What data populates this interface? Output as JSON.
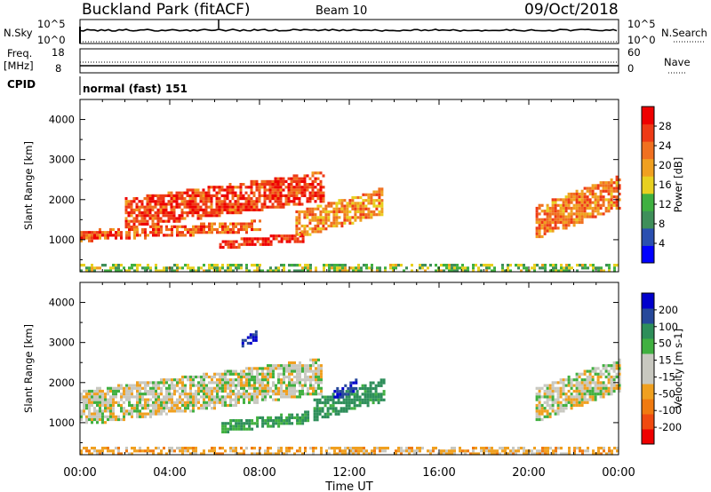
{
  "header": {
    "station": "Buckland Park (fitACF)",
    "beam": "Beam 10",
    "date": "09/Oct/2018"
  },
  "top_panels": {
    "nsky_label": "N.Sky",
    "nsky_tick_high": "10^5",
    "nsky_tick_low": "10^0",
    "nsearch_label": "N.Search",
    "nsearch_tick_high": "10^5",
    "nsearch_tick_low": "10^0",
    "freq_label": "Freq.",
    "freq_unit": "[MHz]",
    "freq_tick_high": "18",
    "freq_tick_low": "8",
    "nave_label": "Nave",
    "nave_tick_high": "60",
    "nave_tick_low": "0",
    "cpid_label": "CPID",
    "cpid_value": "normal (fast) 151"
  },
  "colors": {
    "power_scale": [
      "#0000ff",
      "#2a4fb0",
      "#3f8f5a",
      "#3fb040",
      "#e8d020",
      "#f0a020",
      "#f07020",
      "#ee3a16",
      "#ee0000"
    ],
    "velocity_scale": [
      "#ee0000",
      "#f04a10",
      "#f07a10",
      "#f0a020",
      "#c8c8c0",
      "#c8c8c0",
      "#40b040",
      "#2e8e5a",
      "#26489a",
      "#0000cc"
    ]
  },
  "chart_data": [
    {
      "type": "heatmap",
      "quantity": "Power",
      "x": {
        "label": "Time UT",
        "range": [
          0,
          24
        ],
        "tick_labels": [
          "00:00",
          "04:00",
          "08:00",
          "12:00",
          "16:00",
          "20:00",
          "00:00"
        ]
      },
      "y": {
        "label": "Slant Range [km]",
        "range": [
          200,
          4500
        ],
        "tick_values": [
          1000,
          2000,
          3000,
          4000
        ],
        "tick_labels": [
          "1000",
          "2000",
          "3000",
          "4000"
        ]
      },
      "colorbar": {
        "label": "Power [dB]",
        "tick_labels": [
          "4",
          "8",
          "12",
          "16",
          "20",
          "24",
          "28"
        ],
        "range": [
          0,
          30
        ]
      },
      "echo_regions": [
        {
          "t_start": 0,
          "t_end": 24,
          "range_km": [
            250,
            400
          ],
          "power_db": 12
        },
        {
          "t_start": 0.0,
          "t_end": 8.0,
          "range_km": [
            1000,
            1500
          ],
          "power_db": 24
        },
        {
          "t_start": 2.0,
          "t_end": 10.8,
          "range_km": [
            1350,
            2700
          ],
          "power_db": 26
        },
        {
          "t_start": 6.2,
          "t_end": 9.9,
          "range_km": [
            800,
            1200
          ],
          "power_db": 28
        },
        {
          "t_start": 9.6,
          "t_end": 13.5,
          "range_km": [
            1100,
            2300
          ],
          "power_db": 20
        },
        {
          "t_start": 20.3,
          "t_end": 24,
          "range_km": [
            1100,
            2600
          ],
          "power_db": 22
        }
      ]
    },
    {
      "type": "heatmap",
      "quantity": "Velocity",
      "x": {
        "label": "Time UT",
        "range": [
          0,
          24
        ],
        "tick_labels": [
          "00:00",
          "04:00",
          "08:00",
          "12:00",
          "16:00",
          "20:00",
          "00:00"
        ]
      },
      "y": {
        "label": "Slant Range [km]",
        "range": [
          200,
          4500
        ],
        "tick_values": [
          1000,
          2000,
          3000,
          4000
        ],
        "tick_labels": [
          "1000",
          "2000",
          "3000",
          "4000"
        ]
      },
      "colorbar": {
        "label": "Velocity [m s-1]",
        "tick_labels": [
          "-200",
          "-100",
          "-50",
          "-15",
          "15",
          "50",
          "100",
          "200"
        ]
      },
      "echo_regions": [
        {
          "t_start": 0,
          "t_end": 24,
          "range_km": [
            250,
            400
          ],
          "velocity_ms": -30
        },
        {
          "t_start": 0.0,
          "t_end": 10.8,
          "range_km": [
            1000,
            2600
          ],
          "velocity_ms": 0
        },
        {
          "t_start": 6.3,
          "t_end": 10.2,
          "range_km": [
            800,
            1300
          ],
          "velocity_ms": 50
        },
        {
          "t_start": 10.4,
          "t_end": 13.5,
          "range_km": [
            1100,
            2100
          ],
          "velocity_ms": 70
        },
        {
          "t_start": 11.3,
          "t_end": 12.3,
          "range_km": [
            1600,
            2100
          ],
          "velocity_ms": 200
        },
        {
          "t_start": 7.2,
          "t_end": 7.8,
          "range_km": [
            2900,
            3300
          ],
          "velocity_ms": 200
        },
        {
          "t_start": 20.3,
          "t_end": 24,
          "range_km": [
            1100,
            2600
          ],
          "velocity_ms": 0
        }
      ]
    }
  ]
}
